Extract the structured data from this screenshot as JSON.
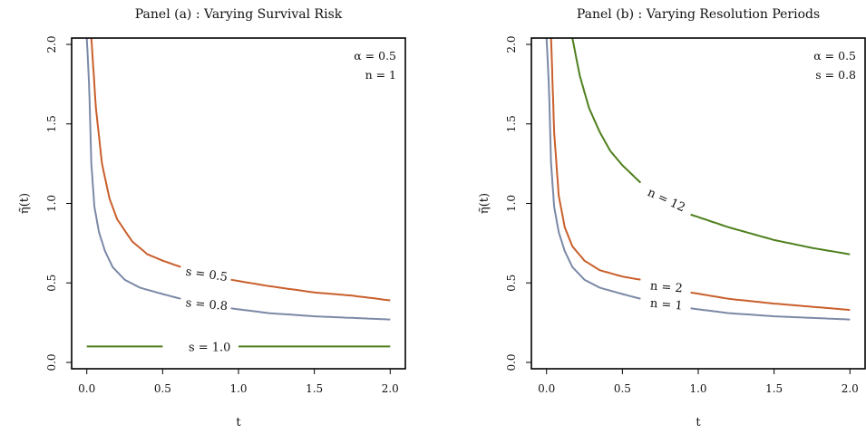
{
  "chart_data": [
    {
      "type": "line",
      "title": "Panel (a) :  Varying Survival Risk",
      "xlabel": "t",
      "ylabel": "η̃(t)",
      "xlim": [
        -0.1,
        2.1
      ],
      "ylim": [
        -0.04,
        2.04
      ],
      "xticks": [
        "0.0",
        "0.5",
        "1.0",
        "1.5",
        "2.0"
      ],
      "yticks": [
        "0.0",
        "0.5",
        "1.0",
        "1.5",
        "2.0"
      ],
      "params": [
        "α = 0.5",
        "n = 1"
      ],
      "grid": false,
      "series": [
        {
          "name": "s = 0.5",
          "color": "#c95f2c",
          "x": [
            0.03,
            0.06,
            0.1,
            0.15,
            0.2,
            0.3,
            0.4,
            0.5,
            0.62,
            0.95,
            1.2,
            1.5,
            1.75,
            2.0
          ],
          "y": [
            2.04,
            1.6,
            1.25,
            1.03,
            0.9,
            0.76,
            0.68,
            0.64,
            0.6,
            0.52,
            0.48,
            0.44,
            0.42,
            0.39
          ],
          "gap": [
            0.63,
            0.95
          ]
        },
        {
          "name": "s = 0.8",
          "color": "#7b89a6",
          "x": [
            0.0,
            0.015,
            0.03,
            0.05,
            0.08,
            0.12,
            0.17,
            0.25,
            0.35,
            0.5,
            0.62,
            0.95,
            1.2,
            1.5,
            1.75,
            2.0
          ],
          "y": [
            2.04,
            1.75,
            1.25,
            0.98,
            0.82,
            0.7,
            0.6,
            0.52,
            0.47,
            0.43,
            0.4,
            0.34,
            0.31,
            0.29,
            0.28,
            0.27
          ],
          "gap": [
            0.63,
            0.95
          ]
        },
        {
          "name": "s = 1.0",
          "color": "#4f7f1d",
          "x": [
            0.0,
            2.0
          ],
          "y": [
            0.1,
            0.1
          ],
          "gap": [
            0.63,
            0.99
          ]
        }
      ]
    },
    {
      "type": "line",
      "title": "Panel (b) :  Varying Resolution Periods",
      "xlabel": "t",
      "ylabel": "η̃(t)",
      "xlim": [
        -0.1,
        2.1
      ],
      "ylim": [
        -0.04,
        2.04
      ],
      "xticks": [
        "0.0",
        "0.5",
        "1.0",
        "1.5",
        "2.0"
      ],
      "yticks": [
        "0.0",
        "0.5",
        "1.0",
        "1.5",
        "2.0"
      ],
      "params": [
        "α = 0.5",
        "s = 0.8"
      ],
      "grid": false,
      "series": [
        {
          "name": "n = 12",
          "color": "#4f7f1d",
          "x": [
            0.17,
            0.22,
            0.28,
            0.35,
            0.42,
            0.5,
            0.62,
            0.95,
            1.2,
            1.5,
            1.75,
            2.0
          ],
          "y": [
            2.04,
            1.8,
            1.6,
            1.45,
            1.33,
            1.24,
            1.13,
            0.93,
            0.85,
            0.77,
            0.72,
            0.68
          ],
          "gap": [
            0.63,
            0.95
          ]
        },
        {
          "name": "n = 2",
          "color": "#c95f2c",
          "x": [
            0.03,
            0.05,
            0.08,
            0.12,
            0.17,
            0.25,
            0.35,
            0.5,
            0.62,
            0.95,
            1.2,
            1.5,
            1.75,
            2.0
          ],
          "y": [
            2.04,
            1.45,
            1.05,
            0.85,
            0.73,
            0.64,
            0.58,
            0.54,
            0.52,
            0.44,
            0.4,
            0.37,
            0.35,
            0.33
          ],
          "gap": [
            0.63,
            0.95
          ]
        },
        {
          "name": "n = 1",
          "color": "#7b89a6",
          "x": [
            0.0,
            0.015,
            0.03,
            0.05,
            0.08,
            0.12,
            0.17,
            0.25,
            0.35,
            0.5,
            0.62,
            0.95,
            1.2,
            1.5,
            1.75,
            2.0
          ],
          "y": [
            2.04,
            1.75,
            1.25,
            0.98,
            0.82,
            0.7,
            0.6,
            0.52,
            0.47,
            0.43,
            0.4,
            0.34,
            0.31,
            0.29,
            0.28,
            0.27
          ],
          "gap": [
            0.63,
            0.95
          ]
        }
      ]
    }
  ]
}
